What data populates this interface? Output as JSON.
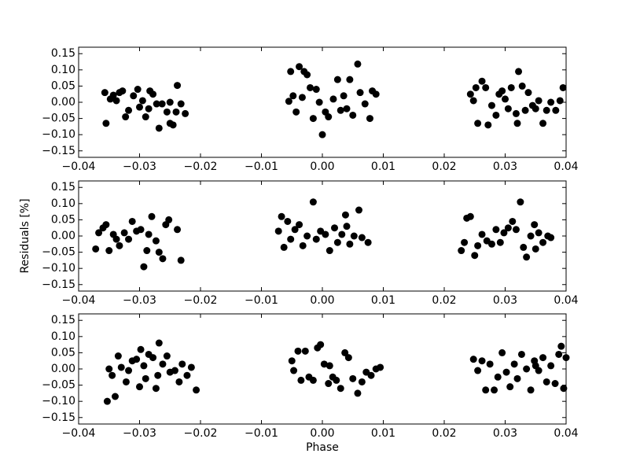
{
  "chart_data": [
    {
      "type": "scatter",
      "color": "#000000",
      "x": [
        -0.0357,
        -0.0355,
        -0.0348,
        -0.0343,
        -0.0338,
        -0.0333,
        -0.0328,
        -0.0323,
        -0.0318,
        -0.031,
        -0.0303,
        -0.03,
        -0.0295,
        -0.029,
        -0.0283,
        -0.0278,
        -0.0272,
        -0.0268,
        -0.0263,
        -0.0255,
        -0.025,
        -0.0245,
        -0.024,
        -0.0238,
        -0.0232,
        -0.0225,
        -0.025,
        -0.0285,
        -0.0055,
        -0.0052,
        -0.0048,
        -0.0043,
        -0.0038,
        -0.0033,
        -0.003,
        -0.0025,
        -0.002,
        -0.0015,
        -0.001,
        0.0,
        0.0005,
        0.001,
        0.0018,
        0.0025,
        0.003,
        0.0035,
        0.0045,
        0.005,
        0.0058,
        0.0062,
        0.007,
        0.0078,
        0.0082,
        0.0088,
        -0.0005,
        0.004,
        0.0243,
        0.0248,
        0.0252,
        0.0255,
        0.0262,
        0.0268,
        0.0272,
        0.0278,
        0.0285,
        0.029,
        0.0295,
        0.03,
        0.0305,
        0.031,
        0.0318,
        0.0322,
        0.0328,
        0.0333,
        0.0338,
        0.0345,
        0.035,
        0.0355,
        0.0362,
        0.0368,
        0.0375,
        0.0383,
        0.039,
        0.0395,
        0.032
      ],
      "values": [
        0.03,
        -0.065,
        0.01,
        0.022,
        0.005,
        0.03,
        0.035,
        -0.045,
        -0.025,
        0.02,
        0.04,
        -0.015,
        0.005,
        -0.045,
        0.035,
        0.025,
        -0.005,
        -0.08,
        -0.005,
        -0.03,
        -0.065,
        -0.07,
        -0.03,
        0.052,
        -0.005,
        -0.035,
        0.0,
        -0.02,
        0.003,
        0.095,
        0.02,
        -0.03,
        0.11,
        0.015,
        0.095,
        0.085,
        0.045,
        -0.05,
        0.04,
        -0.1,
        -0.03,
        -0.045,
        0.01,
        0.07,
        -0.025,
        0.02,
        0.07,
        -0.04,
        0.118,
        0.03,
        -0.005,
        -0.05,
        0.035,
        0.025,
        0.0,
        -0.02,
        0.025,
        0.005,
        0.045,
        -0.065,
        0.065,
        0.045,
        -0.07,
        -0.01,
        -0.04,
        0.025,
        0.035,
        0.01,
        -0.02,
        0.045,
        -0.035,
        0.095,
        0.05,
        -0.025,
        0.03,
        -0.01,
        -0.02,
        0.005,
        -0.065,
        -0.025,
        0.0,
        -0.025,
        0.005,
        0.045,
        -0.065
      ],
      "xlim": [
        -0.04,
        0.04
      ],
      "xticks": [
        {
          "value": -0.04,
          "label": "−0.04"
        },
        {
          "value": -0.03,
          "label": "−0.03"
        },
        {
          "value": -0.02,
          "label": "−0.02"
        },
        {
          "value": -0.01,
          "label": "−0.01"
        },
        {
          "value": 0,
          "label": "0.00"
        },
        0.01,
        0.02,
        0.03,
        0.04
      ],
      "ylim": [
        -0.17,
        0.17
      ],
      "yticks": [
        {
          "value": -0.15,
          "label": "−0.15"
        },
        {
          "value": -0.1,
          "label": "−0.10"
        },
        {
          "value": -0.05,
          "label": "−0.05"
        },
        {
          "value": 0,
          "label": "0.00"
        },
        0.05,
        {
          "value": 0.1,
          "label": "0.10"
        },
        0.15
      ]
    },
    {
      "type": "scatter",
      "color": "#000000",
      "ylabel": "Residuals [%]",
      "x": [
        -0.0372,
        -0.0367,
        -0.036,
        -0.0355,
        -0.035,
        -0.0343,
        -0.0338,
        -0.0333,
        -0.0325,
        -0.0318,
        -0.0312,
        -0.0305,
        -0.0298,
        -0.0293,
        -0.0288,
        -0.028,
        -0.0273,
        -0.0268,
        -0.0262,
        -0.0257,
        -0.0252,
        -0.0238,
        -0.0232,
        -0.0285,
        -0.0072,
        -0.0067,
        -0.0063,
        -0.0057,
        -0.0052,
        -0.0045,
        -0.0038,
        -0.0032,
        -0.0025,
        -0.0015,
        -0.001,
        -0.0003,
        0.0005,
        0.0012,
        0.002,
        0.0025,
        0.0032,
        0.0038,
        0.0045,
        0.0052,
        0.006,
        0.0065,
        0.0075,
        0.004,
        0.0228,
        0.0233,
        0.0237,
        0.0243,
        0.025,
        0.0255,
        0.0262,
        0.027,
        0.0278,
        0.0285,
        0.0292,
        0.0298,
        0.0305,
        0.0312,
        0.0318,
        0.0325,
        0.033,
        0.0335,
        0.0342,
        0.035,
        0.0355,
        0.0362,
        0.037,
        0.0375,
        0.0348
      ],
      "values": [
        -0.04,
        0.01,
        0.025,
        0.035,
        -0.045,
        0.005,
        -0.01,
        -0.03,
        0.01,
        -0.01,
        0.045,
        0.015,
        0.02,
        -0.095,
        -0.045,
        0.06,
        -0.015,
        -0.05,
        -0.07,
        0.035,
        0.05,
        0.02,
        -0.075,
        0.005,
        0.015,
        0.06,
        -0.035,
        0.045,
        -0.01,
        0.02,
        0.035,
        -0.03,
        0.0,
        0.105,
        -0.01,
        0.015,
        0.005,
        -0.045,
        0.025,
        -0.02,
        0.005,
        0.065,
        -0.025,
        0.0,
        0.08,
        -0.005,
        -0.02,
        0.03,
        -0.045,
        -0.02,
        0.055,
        0.06,
        -0.06,
        -0.03,
        0.005,
        -0.015,
        -0.025,
        0.02,
        -0.02,
        0.01,
        0.025,
        0.045,
        0.02,
        0.105,
        -0.035,
        -0.065,
        0.0,
        -0.04,
        0.01,
        -0.02,
        0.0,
        -0.005,
        0.035
      ],
      "xlim": [
        -0.04,
        0.04
      ],
      "xticks": [
        {
          "value": -0.04,
          "label": "−0.04"
        },
        {
          "value": -0.03,
          "label": "−0.03"
        },
        {
          "value": -0.02,
          "label": "−0.02"
        },
        {
          "value": -0.01,
          "label": "−0.01"
        },
        {
          "value": 0,
          "label": "0.00"
        },
        0.01,
        0.02,
        0.03,
        0.04
      ],
      "ylim": [
        -0.17,
        0.17
      ],
      "yticks": [
        {
          "value": -0.15,
          "label": "−0.15"
        },
        {
          "value": -0.1,
          "label": "−0.10"
        },
        {
          "value": -0.05,
          "label": "−0.05"
        },
        {
          "value": 0,
          "label": "0.00"
        },
        0.05,
        {
          "value": 0.1,
          "label": "0.10"
        },
        0.15
      ]
    },
    {
      "type": "scatter",
      "color": "#000000",
      "xlabel": "Phase",
      "x": [
        -0.0353,
        -0.035,
        -0.0345,
        -0.034,
        -0.0335,
        -0.033,
        -0.0322,
        -0.0318,
        -0.0312,
        -0.0305,
        -0.0298,
        -0.03,
        -0.0293,
        -0.0285,
        -0.0278,
        -0.0273,
        -0.0268,
        -0.0262,
        -0.0255,
        -0.025,
        -0.0242,
        -0.0235,
        -0.023,
        -0.0222,
        -0.0215,
        -0.0207,
        -0.027,
        -0.029,
        -0.005,
        -0.0047,
        -0.004,
        -0.0035,
        -0.0028,
        -0.0022,
        -0.0015,
        -0.0008,
        -0.0003,
        0.0003,
        0.001,
        0.0017,
        0.0023,
        0.003,
        0.0037,
        0.0043,
        0.005,
        0.0058,
        0.0065,
        0.0072,
        0.008,
        0.0088,
        0.0095,
        0.0012,
        0.0248,
        0.0255,
        0.0262,
        0.0268,
        0.0275,
        0.0282,
        0.0288,
        0.0295,
        0.0302,
        0.0308,
        0.0315,
        0.032,
        0.0327,
        0.0335,
        0.0342,
        0.0348,
        0.0355,
        0.0362,
        0.0368,
        0.0375,
        0.0382,
        0.0388,
        0.0392,
        0.0396,
        0.04,
        0.035
      ],
      "values": [
        -0.1,
        0.0,
        -0.02,
        -0.085,
        0.04,
        0.005,
        -0.04,
        -0.005,
        0.025,
        0.03,
        0.06,
        -0.055,
        0.01,
        0.045,
        0.035,
        -0.06,
        0.08,
        0.015,
        0.04,
        -0.01,
        -0.005,
        -0.04,
        0.015,
        -0.02,
        0.005,
        -0.065,
        -0.02,
        -0.03,
        0.025,
        -0.005,
        0.055,
        -0.035,
        0.055,
        -0.025,
        -0.035,
        0.065,
        0.075,
        0.015,
        -0.045,
        -0.025,
        -0.035,
        -0.06,
        0.05,
        0.035,
        -0.03,
        -0.075,
        -0.04,
        -0.01,
        -0.02,
        0.0,
        0.005,
        0.01,
        0.03,
        -0.005,
        0.025,
        -0.065,
        0.015,
        -0.065,
        -0.025,
        0.05,
        -0.01,
        -0.055,
        0.015,
        -0.03,
        0.045,
        0.0,
        -0.065,
        0.025,
        -0.005,
        0.035,
        -0.04,
        0.01,
        -0.045,
        0.045,
        0.07,
        -0.06,
        0.035,
        0.01
      ],
      "xlim": [
        -0.04,
        0.04
      ],
      "xticks": [
        {
          "value": -0.04,
          "label": "−0.04"
        },
        {
          "value": -0.03,
          "label": "−0.03"
        },
        {
          "value": -0.02,
          "label": "−0.02"
        },
        {
          "value": -0.01,
          "label": "−0.01"
        },
        {
          "value": 0,
          "label": "0.00"
        },
        0.01,
        0.02,
        0.03,
        0.04
      ],
      "ylim": [
        -0.17,
        0.17
      ],
      "yticks": [
        {
          "value": -0.15,
          "label": "−0.15"
        },
        {
          "value": -0.1,
          "label": "−0.10"
        },
        {
          "value": -0.05,
          "label": "−0.05"
        },
        {
          "value": 0,
          "label": "0.00"
        },
        0.05,
        {
          "value": 0.1,
          "label": "0.10"
        },
        0.15
      ]
    }
  ]
}
